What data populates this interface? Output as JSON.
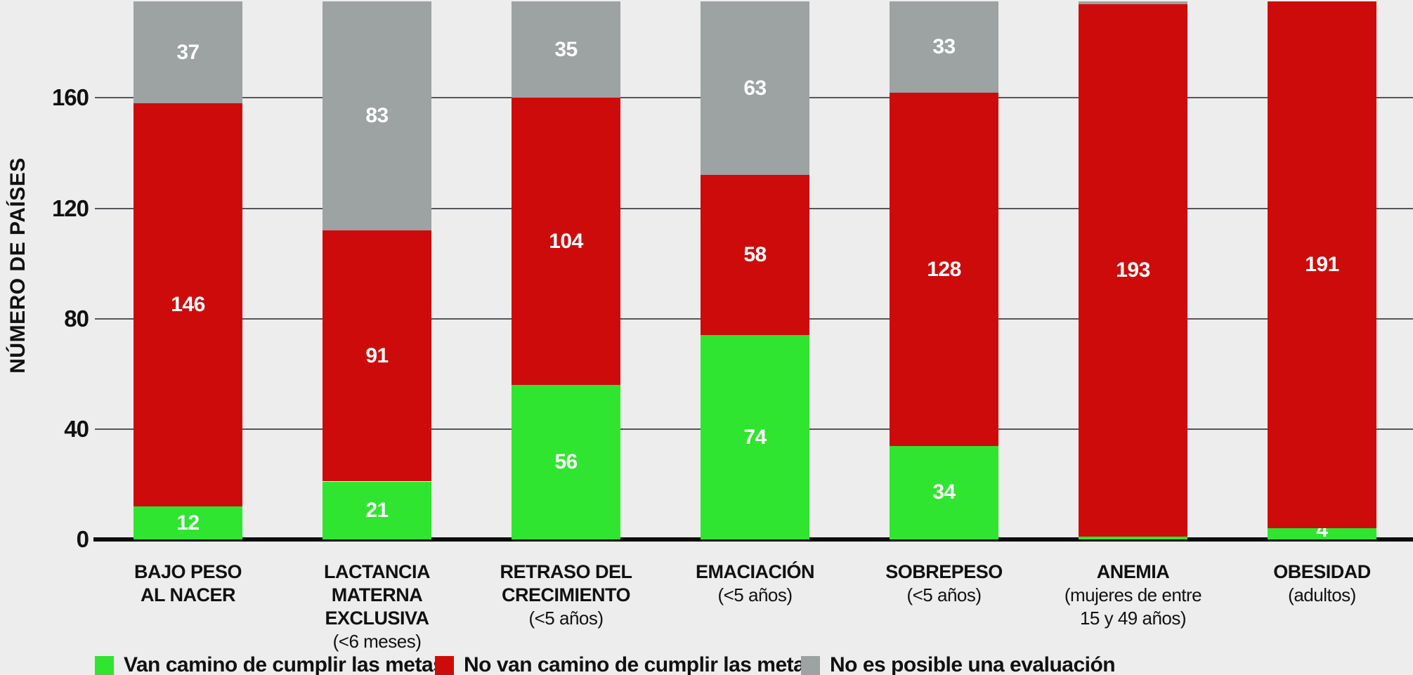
{
  "colors": {
    "background": "#EDEDED",
    "on_track_green": "#2FE52F",
    "off_track_red": "#CE0B0B",
    "no_assessment_gray": "#9DA2A2",
    "gridline": "#54565A",
    "axis_black": "#0B0B0B",
    "value_label_white": "#FFFFFF"
  },
  "y_axis": {
    "title": "NÚMERO DE PAÍSES",
    "tick_labels": [
      "0",
      "40",
      "80",
      "120",
      "160"
    ]
  },
  "legend": {
    "items": [
      {
        "label": "Van camino de cumplir las metas",
        "color": "#2FE52F"
      },
      {
        "label": "No van camino de cumplir las metas",
        "color": "#CE0B0B"
      },
      {
        "label": "No es posible una evaluación",
        "color": "#9DA2A2"
      }
    ]
  },
  "chart_data": {
    "type": "bar",
    "stacked": true,
    "grid": true,
    "legend_position": "bottom",
    "ylabel": "NÚMERO DE PAÍSES",
    "ylim": [
      0,
      195
    ],
    "yticks": [
      0,
      40,
      80,
      120,
      160
    ],
    "total_per_bar": 195,
    "categories": [
      "BAJO PESO AL NACER",
      "LACTANCIA MATERNA EXCLUSIVA (<6 meses)",
      "RETRASO DEL CRECIMIENTO (<5 años)",
      "EMACIACIÓN (<5 años)",
      "SOBREPESO (<5 años)",
      "ANEMIA (mujeres de entre 15 y 49 años)",
      "OBESIDAD (adultos)"
    ],
    "category_label_lines": [
      [
        "BAJO PESO",
        "AL NACER"
      ],
      [
        "LACTANCIA MATERNA",
        "EXCLUSIVA"
      ],
      [
        "RETRASO DEL",
        "CRECIMIENTO"
      ],
      [
        "EMACIACIÓN"
      ],
      [
        "SOBREPESO"
      ],
      [
        "ANEMIA"
      ],
      [
        "OBESIDAD"
      ]
    ],
    "category_sublabel_lines": [
      [],
      [
        "(<6 meses)"
      ],
      [
        "(<5 años)"
      ],
      [
        "(<5 años)"
      ],
      [
        "(<5 años)"
      ],
      [
        "(mujeres de entre",
        "15 y 49 años)"
      ],
      [
        "(adultos)"
      ]
    ],
    "series": [
      {
        "name": "Van camino de cumplir las metas",
        "color": "#2FE52F",
        "values": [
          12,
          21,
          56,
          74,
          34,
          1,
          4
        ],
        "value_labels": [
          "12",
          "21",
          "56",
          "74",
          "34",
          "",
          "4"
        ]
      },
      {
        "name": "No van camino de cumplir las metas",
        "color": "#CE0B0B",
        "values": [
          146,
          91,
          104,
          58,
          128,
          193,
          191
        ],
        "value_labels": [
          "146",
          "91",
          "104",
          "58",
          "128",
          "193",
          "191"
        ]
      },
      {
        "name": "No es posible una evaluación",
        "color": "#9DA2A2",
        "values": [
          37,
          83,
          35,
          63,
          33,
          1,
          0
        ],
        "value_labels": [
          "37",
          "83",
          "35",
          "63",
          "33",
          "",
          ""
        ]
      }
    ]
  }
}
